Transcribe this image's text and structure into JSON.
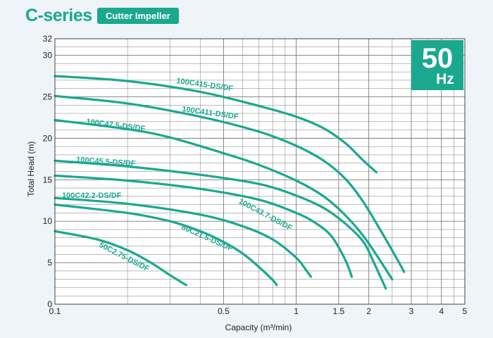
{
  "header": {
    "title": "C-series",
    "badge": "Cutter Impeller"
  },
  "colors": {
    "accent": "#1aa88f",
    "grid": "#7a7a7a",
    "background": "#eef4f8"
  },
  "chart_data": {
    "type": "line",
    "xlabel": "Capacity (m³/min)",
    "ylabel": "Total Head (m)",
    "xscale": "log",
    "xlim": [
      0.1,
      5
    ],
    "ylim": [
      0,
      32
    ],
    "x_ticks": [
      0.1,
      0.5,
      1,
      1.5,
      2,
      3,
      4,
      5
    ],
    "x_tick_labels": [
      "0.1",
      "0.5",
      "1",
      "1.5",
      "2",
      "3",
      "4",
      "5"
    ],
    "y_ticks": [
      0,
      5,
      10,
      15,
      20,
      25,
      30,
      32
    ],
    "y_tick_labels": [
      "0",
      "5",
      "10",
      "15",
      "20",
      "25",
      "30",
      "32"
    ],
    "grid": true,
    "frequency_badge": {
      "value": "50",
      "unit": "Hz"
    },
    "series": [
      {
        "name": "100C415-DS/DF",
        "points": [
          [
            0.1,
            27.5
          ],
          [
            0.2,
            26.9
          ],
          [
            0.4,
            25.6
          ],
          [
            0.7,
            23.9
          ],
          [
            1.0,
            22.6
          ],
          [
            1.3,
            21.2
          ],
          [
            1.6,
            19.4
          ],
          [
            1.9,
            17.3
          ],
          [
            2.15,
            15.9
          ]
        ]
      },
      {
        "name": "100C411-DS/DF",
        "points": [
          [
            0.1,
            25.1
          ],
          [
            0.2,
            24.2
          ],
          [
            0.4,
            22.6
          ],
          [
            0.7,
            20.8
          ],
          [
            1.0,
            19.1
          ],
          [
            1.3,
            17.3
          ],
          [
            1.6,
            15.1
          ],
          [
            1.9,
            12.3
          ],
          [
            2.3,
            8.3
          ],
          [
            2.6,
            5.6
          ],
          [
            2.8,
            3.9
          ]
        ]
      },
      {
        "name": "100C47.5-DS/DF",
        "points": [
          [
            0.1,
            22.2
          ],
          [
            0.2,
            21.1
          ],
          [
            0.3,
            20.1
          ],
          [
            0.5,
            18.2
          ],
          [
            0.7,
            16.8
          ],
          [
            1.0,
            14.9
          ],
          [
            1.3,
            13.0
          ],
          [
            1.6,
            10.7
          ],
          [
            1.9,
            8.2
          ],
          [
            2.2,
            5.5
          ],
          [
            2.5,
            3.0
          ]
        ]
      },
      {
        "name": "100C45.5-DS/DF",
        "points": [
          [
            0.1,
            17.3
          ],
          [
            0.2,
            16.6
          ],
          [
            0.4,
            15.6
          ],
          [
            0.7,
            14.5
          ],
          [
            1.0,
            13.1
          ],
          [
            1.3,
            11.6
          ],
          [
            1.6,
            9.7
          ],
          [
            1.9,
            7.5
          ],
          [
            2.1,
            5.0
          ],
          [
            2.3,
            2.5
          ],
          [
            2.35,
            1.9
          ]
        ]
      },
      {
        "name": "100C43.7-DS/DF",
        "points": [
          [
            0.1,
            15.5
          ],
          [
            0.2,
            14.9
          ],
          [
            0.4,
            13.9
          ],
          [
            0.7,
            12.6
          ],
          [
            1.0,
            11.0
          ],
          [
            1.2,
            9.8
          ],
          [
            1.4,
            8.2
          ],
          [
            1.6,
            5.3
          ],
          [
            1.7,
            3.3
          ]
        ]
      },
      {
        "name": "100C42.2-DS/DF",
        "points": [
          [
            0.1,
            12.8
          ],
          [
            0.2,
            12.1
          ],
          [
            0.4,
            10.8
          ],
          [
            0.6,
            9.4
          ],
          [
            0.8,
            7.8
          ],
          [
            1.0,
            5.6
          ],
          [
            1.1,
            4.1
          ],
          [
            1.15,
            3.3
          ]
        ]
      },
      {
        "name": "80C21.5-DS/DF",
        "points": [
          [
            0.1,
            12.0
          ],
          [
            0.2,
            11.0
          ],
          [
            0.3,
            10.0
          ],
          [
            0.4,
            8.8
          ],
          [
            0.5,
            7.5
          ],
          [
            0.6,
            6.1
          ],
          [
            0.7,
            4.5
          ],
          [
            0.8,
            2.9
          ],
          [
            0.83,
            2.3
          ]
        ]
      },
      {
        "name": "50C2.75-DS/DF",
        "points": [
          [
            0.1,
            8.8
          ],
          [
            0.15,
            7.8
          ],
          [
            0.2,
            6.5
          ],
          [
            0.25,
            5.0
          ],
          [
            0.3,
            3.5
          ],
          [
            0.35,
            2.3
          ]
        ]
      }
    ]
  }
}
